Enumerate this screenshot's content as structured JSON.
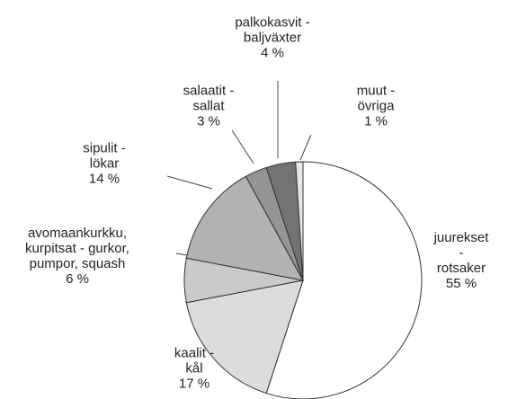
{
  "chart_data": {
    "type": "pie",
    "categories": [
      "juurekset -\nrotsaker",
      "kaalit -\nkål",
      "avomaankurkku,\nkurpitsat - gurkor,\npumpor, squash",
      "sipulit -\nlökar",
      "salaatit -\nsallat",
      "palkokasvit -\nbaljväxter",
      "muut -\növriga"
    ],
    "values": [
      55,
      17,
      6,
      14,
      3,
      4,
      1
    ],
    "value_labels": [
      "55 %",
      "17 %",
      "6 %",
      "14 %",
      "3 %",
      "4 %",
      "1 %"
    ],
    "colors": [
      "#ffffff",
      "#dcdcdc",
      "#c9c9c9",
      "#b2b2b2",
      "#949494",
      "#737373",
      "#e6e6e6"
    ]
  }
}
